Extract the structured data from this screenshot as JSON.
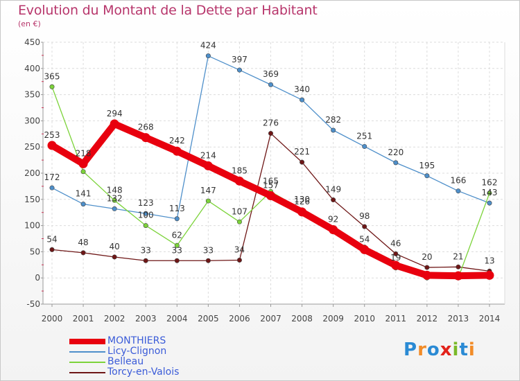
{
  "header": {
    "title": "Evolution du Montant de la Dette par Habitant",
    "subtitle": "(en €)"
  },
  "logo": {
    "text": "Proxiti",
    "letters": [
      {
        "ch": "P",
        "color": "#2a8ad4"
      },
      {
        "ch": "r",
        "color": "#f28c28"
      },
      {
        "ch": "o",
        "color": "#2a8ad4"
      },
      {
        "ch": "x",
        "color": "#e2221a"
      },
      {
        "ch": "i",
        "color": "#7ab929"
      },
      {
        "ch": "t",
        "color": "#2a8ad4"
      },
      {
        "ch": "i",
        "color": "#f28c28"
      }
    ]
  },
  "chart_data": {
    "type": "line",
    "title": "Evolution du Montant de la Dette par Habitant",
    "subtitle": "(en €)",
    "x": [
      "2000",
      "2001",
      "2002",
      "2003",
      "2004",
      "2005",
      "2006",
      "2007",
      "2008",
      "2009",
      "2010",
      "2011",
      "2012",
      "2013",
      "2014"
    ],
    "ylim": [
      -50,
      450
    ],
    "yticks": [
      -50,
      0,
      50,
      100,
      150,
      200,
      250,
      300,
      350,
      400,
      450
    ],
    "grid": true,
    "legend_position": "bottom-left",
    "series": [
      {
        "name": "MONTHIERS",
        "color": "#e8000e",
        "values": [
          253,
          218,
          294,
          268,
          242,
          214,
          185,
          157,
          126,
          92,
          54,
          24,
          5,
          4,
          5
        ],
        "labels": [
          "253",
          "218",
          "294",
          "268",
          "242",
          "214",
          "185",
          "157",
          "126",
          "92",
          "54",
          "",
          "",
          "",
          ""
        ]
      },
      {
        "name": "Licy-Clignon",
        "color": "#4e8fca",
        "values": [
          172,
          141,
          132,
          123,
          113,
          424,
          397,
          369,
          340,
          282,
          251,
          220,
          195,
          166,
          143
        ],
        "labels": [
          "172",
          "141",
          "132",
          "123",
          "113",
          "424",
          "397",
          "369",
          "340",
          "282",
          "251",
          "220",
          "195",
          "166",
          "143"
        ]
      },
      {
        "name": "Belleau",
        "color": "#7cd33a",
        "values": [
          365,
          203,
          148,
          100,
          62,
          147,
          107,
          165,
          130,
          96,
          59,
          19,
          0,
          0,
          162
        ],
        "labels": [
          "365",
          "",
          "148",
          "100",
          "62",
          "147",
          "107",
          "165",
          "130",
          "",
          "",
          "19",
          "",
          "",
          "162"
        ]
      },
      {
        "name": "Torcy-en-Valois",
        "color": "#6e1616",
        "values": [
          54,
          48,
          40,
          33,
          33,
          33,
          34,
          276,
          221,
          149,
          98,
          46,
          20,
          21,
          13
        ],
        "labels": [
          "54",
          "48",
          "40",
          "33",
          "33",
          "33",
          "34",
          "276",
          "221",
          "149",
          "98",
          "46",
          "20",
          "21",
          "13"
        ]
      }
    ]
  }
}
